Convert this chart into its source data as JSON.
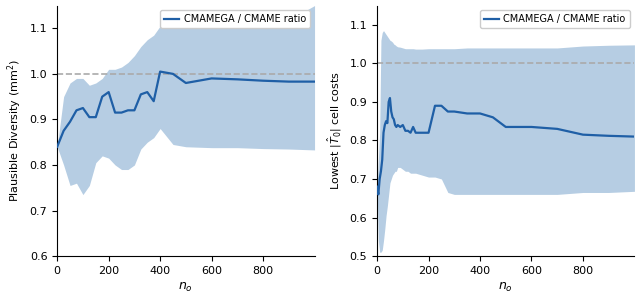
{
  "line_color": "#1f5fa6",
  "fill_color": "#aec8e0",
  "dashed_color": "#aaaaaa",
  "legend_label": "CMAMEGA / CMAME ratio",
  "xlabel": "$n_o$",
  "ylabel_left": "Plausible Diversity (mm$^2$)",
  "ylabel_right": "Lowest $|\\hat{T}_0|$ cell costs",
  "xlim": [
    0,
    1000
  ],
  "left_ylim": [
    0.6,
    1.15
  ],
  "right_ylim": [
    0.5,
    1.15
  ],
  "left_yticks": [
    0.6,
    0.7,
    0.8,
    0.9,
    1.0,
    1.1
  ],
  "right_yticks": [
    0.5,
    0.6,
    0.7,
    0.8,
    0.9,
    1.0,
    1.1
  ],
  "left_xticks": [
    0,
    200,
    400,
    600,
    800
  ],
  "right_xticks": [
    0,
    200,
    400,
    600,
    800
  ],
  "left_x": [
    0,
    25,
    50,
    75,
    100,
    125,
    150,
    175,
    200,
    225,
    250,
    275,
    300,
    325,
    350,
    375,
    400,
    450,
    500,
    600,
    700,
    800,
    900,
    1000
  ],
  "left_mean": [
    0.84,
    0.875,
    0.895,
    0.92,
    0.925,
    0.905,
    0.905,
    0.95,
    0.96,
    0.915,
    0.915,
    0.92,
    0.92,
    0.955,
    0.96,
    0.94,
    1.005,
    1.0,
    0.98,
    0.99,
    0.988,
    0.985,
    0.983,
    0.983
  ],
  "left_lo": [
    0.84,
    0.8,
    0.755,
    0.76,
    0.735,
    0.755,
    0.805,
    0.82,
    0.815,
    0.8,
    0.79,
    0.79,
    0.8,
    0.835,
    0.85,
    0.86,
    0.88,
    0.845,
    0.84,
    0.838,
    0.838,
    0.836,
    0.835,
    0.833
  ],
  "left_hi": [
    0.84,
    0.95,
    0.98,
    0.99,
    0.99,
    0.975,
    0.98,
    0.99,
    1.01,
    1.01,
    1.015,
    1.025,
    1.04,
    1.06,
    1.075,
    1.085,
    1.105,
    1.12,
    1.12,
    1.12,
    1.118,
    1.118,
    1.118,
    1.15
  ],
  "right_x": [
    0,
    5,
    10,
    15,
    20,
    25,
    30,
    35,
    40,
    45,
    50,
    55,
    60,
    65,
    70,
    75,
    80,
    90,
    100,
    110,
    120,
    130,
    140,
    150,
    175,
    200,
    225,
    250,
    275,
    300,
    350,
    400,
    450,
    500,
    600,
    700,
    800,
    900,
    1000
  ],
  "right_mean": [
    0.68,
    0.66,
    0.7,
    0.72,
    0.75,
    0.82,
    0.84,
    0.85,
    0.845,
    0.9,
    0.91,
    0.875,
    0.86,
    0.855,
    0.84,
    0.835,
    0.84,
    0.835,
    0.84,
    0.825,
    0.825,
    0.82,
    0.835,
    0.82,
    0.82,
    0.82,
    0.89,
    0.89,
    0.875,
    0.875,
    0.87,
    0.87,
    0.86,
    0.835,
    0.835,
    0.83,
    0.815,
    0.812,
    0.81
  ],
  "right_lo": [
    0.68,
    0.54,
    0.51,
    0.51,
    0.515,
    0.54,
    0.57,
    0.605,
    0.63,
    0.66,
    0.69,
    0.7,
    0.71,
    0.715,
    0.72,
    0.72,
    0.73,
    0.73,
    0.725,
    0.72,
    0.72,
    0.715,
    0.715,
    0.715,
    0.71,
    0.705,
    0.705,
    0.7,
    0.665,
    0.66,
    0.66,
    0.66,
    0.66,
    0.66,
    0.66,
    0.66,
    0.665,
    0.665,
    0.668
  ],
  "right_hi": [
    0.68,
    0.75,
    0.82,
    1.06,
    1.08,
    1.085,
    1.08,
    1.075,
    1.07,
    1.065,
    1.06,
    1.058,
    1.055,
    1.05,
    1.048,
    1.045,
    1.043,
    1.042,
    1.04,
    1.038,
    1.038,
    1.038,
    1.038,
    1.037,
    1.037,
    1.038,
    1.038,
    1.038,
    1.038,
    1.038,
    1.04,
    1.04,
    1.04,
    1.04,
    1.04,
    1.04,
    1.045,
    1.047,
    1.048
  ]
}
